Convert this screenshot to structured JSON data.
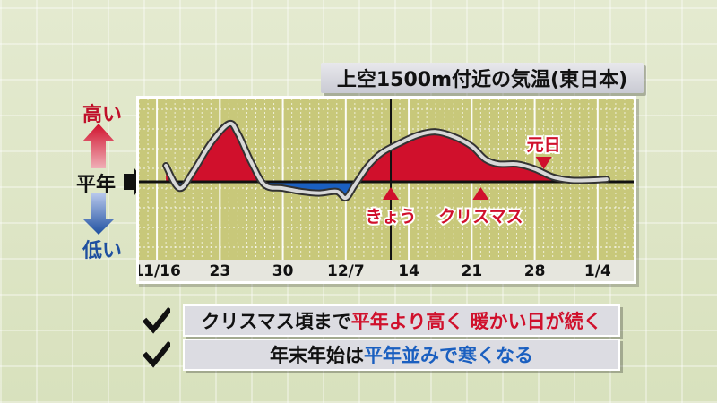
{
  "title": "上空1500m付近の気温(東日本)",
  "side_labels": {
    "high": "高い",
    "normal": "平年",
    "low": "低い"
  },
  "colors": {
    "above": "#d0102c",
    "below": "#1a5fc0",
    "plot_bg": "#c8c87a",
    "high_arrow": "#d0102c",
    "low_arrow": "#1e4fa0"
  },
  "chart_data": {
    "type": "area",
    "x_tick_labels": [
      "11/16",
      "23",
      "30",
      "12/7",
      "14",
      "21",
      "28",
      "1/4"
    ],
    "x_tick_days": [
      0,
      7,
      14,
      21,
      28,
      35,
      42,
      49
    ],
    "baseline": 0,
    "ylim": [
      -4,
      4
    ],
    "today_day": 26,
    "series": [
      {
        "points": [
          [
            1,
            0.5
          ],
          [
            2.5,
            -0.2
          ],
          [
            4,
            0.3
          ],
          [
            6,
            1.2
          ],
          [
            8,
            1.8
          ],
          [
            9,
            1.5
          ],
          [
            10.5,
            0.6
          ],
          [
            12,
            -0.1
          ],
          [
            14,
            -0.2
          ],
          [
            16,
            -0.3
          ],
          [
            18,
            -0.35
          ],
          [
            20,
            -0.3
          ],
          [
            21,
            -0.5
          ],
          [
            22,
            -0.1
          ],
          [
            23.5,
            0.5
          ],
          [
            25,
            0.9
          ],
          [
            27,
            1.2
          ],
          [
            29,
            1.45
          ],
          [
            31,
            1.55
          ],
          [
            33,
            1.4
          ],
          [
            35,
            1.1
          ],
          [
            36.5,
            0.7
          ],
          [
            38,
            0.55
          ],
          [
            40,
            0.55
          ],
          [
            42,
            0.4
          ],
          [
            44,
            0.15
          ],
          [
            46,
            0.05
          ],
          [
            48,
            0.05
          ],
          [
            50,
            0.08
          ]
        ]
      }
    ],
    "annotations": [
      {
        "text": "きょう",
        "day": 26,
        "side": "below"
      },
      {
        "text": "クリスマス",
        "day": 36,
        "side": "below"
      },
      {
        "text": "元日",
        "day": 43,
        "side": "above"
      }
    ]
  },
  "notes": [
    {
      "parts": [
        {
          "text": "クリスマス頃まで",
          "color": "dark"
        },
        {
          "text": "平年より高く 暖かい日が続く",
          "color": "red"
        }
      ]
    },
    {
      "parts": [
        {
          "text": "年末年始は",
          "color": "dark"
        },
        {
          "text": "平年並みで寒くなる",
          "color": "blue"
        }
      ]
    }
  ]
}
